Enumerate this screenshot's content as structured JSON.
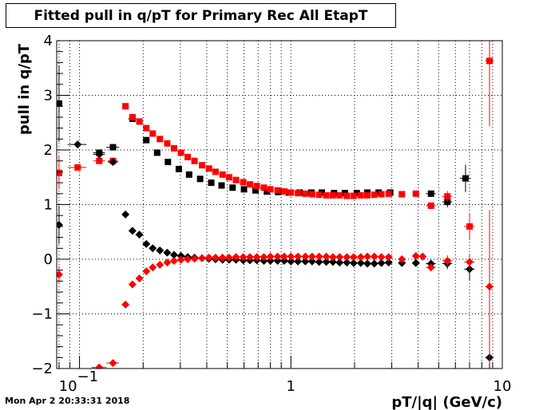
{
  "title": "Fitted pull in q/pT for Primary Rec All EtapT",
  "timestamp": "Mon Apr  2 20:33:31 2018",
  "chart_data": {
    "type": "scatter",
    "xlabel": "pT/|q| (GeV/c)",
    "ylabel": "pull in q/pT",
    "xscale": "log",
    "xlim": [
      0.078,
      10
    ],
    "ylim": [
      -2,
      4
    ],
    "grid": true,
    "x_ticks": [
      {
        "value": 0.1,
        "base": "10",
        "exp": "−1"
      },
      {
        "value": 1,
        "label": "1"
      },
      {
        "value": 10,
        "label": "10"
      }
    ],
    "y_ticks": [
      {
        "value": 4,
        "label": "4"
      },
      {
        "value": 3,
        "label": "3"
      },
      {
        "value": 2,
        "label": "2"
      },
      {
        "value": 1,
        "label": "1"
      },
      {
        "value": 0,
        "label": "0"
      },
      {
        "value": -1,
        "label": "−1"
      },
      {
        "value": -2,
        "label": "−2"
      }
    ],
    "series": [
      {
        "color": "#000000",
        "marker": "square",
        "x": [
          0.08,
          0.124,
          0.144,
          0.178,
          0.207,
          0.233,
          0.262,
          0.295,
          0.33,
          0.372,
          0.42,
          0.47,
          0.53,
          0.6,
          0.68,
          0.77,
          0.87,
          0.98,
          1.1,
          1.25,
          1.4,
          1.6,
          1.8,
          2.05,
          2.3,
          2.6,
          2.95,
          4.6,
          5.5,
          6.7
        ],
        "y": [
          2.85,
          1.95,
          2.05,
          2.57,
          2.18,
          1.95,
          1.78,
          1.65,
          1.55,
          1.47,
          1.4,
          1.35,
          1.31,
          1.28,
          1.26,
          1.24,
          1.23,
          1.22,
          1.22,
          1.22,
          1.22,
          1.21,
          1.21,
          1.21,
          1.22,
          1.22,
          1.22,
          1.2,
          1.05,
          1.48
        ],
        "xerr": [
          0.003,
          0.008,
          0.01,
          0.008,
          0.008,
          0.008,
          0.008,
          0.008,
          0.008,
          0.01,
          0.01,
          0.01,
          0.012,
          0.015,
          0.015,
          0.02,
          0.02,
          0.02,
          0.03,
          0.03,
          0.04,
          0.04,
          0.05,
          0.06,
          0.06,
          0.08,
          0.1,
          0.25,
          0.3,
          0.4
        ],
        "yerr": [
          0.7,
          0.05,
          0.04,
          0.04,
          0.03,
          0.02,
          0.02,
          0.02,
          0.02,
          0.02,
          0.02,
          0.02,
          0.02,
          0.02,
          0.02,
          0.02,
          0.02,
          0.02,
          0.02,
          0.02,
          0.02,
          0.02,
          0.02,
          0.02,
          0.02,
          0.02,
          0.03,
          0.05,
          0.1,
          0.25
        ]
      },
      {
        "color": "#ff0000",
        "marker": "square",
        "x": [
          0.08,
          0.098,
          0.124,
          0.144,
          0.165,
          0.178,
          0.192,
          0.207,
          0.222,
          0.24,
          0.26,
          0.28,
          0.302,
          0.325,
          0.35,
          0.38,
          0.41,
          0.44,
          0.475,
          0.51,
          0.55,
          0.595,
          0.64,
          0.69,
          0.745,
          0.8,
          0.865,
          0.93,
          1.0,
          1.08,
          1.17,
          1.26,
          1.36,
          1.47,
          1.58,
          1.7,
          1.84,
          1.98,
          2.14,
          2.3,
          2.48,
          2.68,
          2.9,
          3.35,
          3.9,
          4.6,
          5.5,
          7.0,
          8.7
        ],
        "y": [
          1.58,
          1.68,
          1.8,
          1.8,
          2.8,
          2.6,
          2.52,
          2.4,
          2.3,
          2.2,
          2.12,
          2.03,
          1.95,
          1.87,
          1.8,
          1.72,
          1.66,
          1.6,
          1.55,
          1.5,
          1.45,
          1.41,
          1.37,
          1.34,
          1.31,
          1.28,
          1.26,
          1.24,
          1.22,
          1.21,
          1.2,
          1.19,
          1.18,
          1.17,
          1.17,
          1.17,
          1.16,
          1.16,
          1.17,
          1.17,
          1.18,
          1.19,
          1.2,
          1.19,
          1.2,
          0.98,
          1.15,
          0.6,
          3.63
        ],
        "xerr": [
          0.003,
          0.01,
          0.008,
          0.008,
          0.003,
          0.003,
          0.003,
          0.003,
          0.003,
          0.003,
          0.003,
          0.003,
          0.003,
          0.003,
          0.003,
          0.004,
          0.004,
          0.004,
          0.004,
          0.004,
          0.005,
          0.005,
          0.005,
          0.005,
          0.006,
          0.006,
          0.007,
          0.008,
          0.01,
          0.01,
          0.01,
          0.01,
          0.012,
          0.012,
          0.013,
          0.014,
          0.015,
          0.016,
          0.018,
          0.02,
          0.02,
          0.025,
          0.03,
          0.1,
          0.15,
          0.25,
          0.3,
          0.4,
          0.4
        ],
        "yerr": [
          0.3,
          0.03,
          0.04,
          0.04,
          0.05,
          0.03,
          0.02,
          0.02,
          0.02,
          0.02,
          0.02,
          0.02,
          0.02,
          0.02,
          0.02,
          0.02,
          0.02,
          0.02,
          0.02,
          0.02,
          0.02,
          0.02,
          0.02,
          0.02,
          0.02,
          0.02,
          0.02,
          0.02,
          0.02,
          0.02,
          0.02,
          0.02,
          0.02,
          0.02,
          0.02,
          0.02,
          0.02,
          0.02,
          0.02,
          0.02,
          0.02,
          0.02,
          0.02,
          0.03,
          0.04,
          0.06,
          0.1,
          0.25,
          1.2
        ]
      },
      {
        "color": "#000000",
        "marker": "diamond",
        "x": [
          0.08,
          0.098,
          0.124,
          0.144,
          0.165,
          0.178,
          0.192,
          0.207,
          0.222,
          0.24,
          0.26,
          0.28,
          0.302,
          0.325,
          0.35,
          0.38,
          0.41,
          0.44,
          0.475,
          0.51,
          0.55,
          0.595,
          0.64,
          0.69,
          0.745,
          0.8,
          0.865,
          0.93,
          1.0,
          1.08,
          1.17,
          1.26,
          1.36,
          1.47,
          1.58,
          1.7,
          1.84,
          1.98,
          2.14,
          2.3,
          2.48,
          2.68,
          2.9,
          3.35,
          3.9,
          4.6,
          5.5,
          7.0,
          8.7
        ],
        "y": [
          0.63,
          2.1,
          1.92,
          1.78,
          0.82,
          0.52,
          0.45,
          0.28,
          0.2,
          0.16,
          0.12,
          0.08,
          0.06,
          0.04,
          0.03,
          0.02,
          0.01,
          0.0,
          -0.01,
          -0.01,
          -0.01,
          -0.02,
          -0.02,
          -0.02,
          -0.03,
          -0.03,
          -0.03,
          -0.03,
          -0.04,
          -0.04,
          -0.04,
          -0.04,
          -0.05,
          -0.05,
          -0.05,
          -0.06,
          -0.06,
          -0.07,
          -0.07,
          -0.08,
          -0.08,
          -0.07,
          -0.06,
          -0.07,
          -0.07,
          -0.08,
          -0.08,
          -0.18,
          -1.8
        ],
        "xerr": [
          0.003,
          0.01,
          0.008,
          0.008,
          0.003,
          0.003,
          0.003,
          0.003,
          0.003,
          0.003,
          0.003,
          0.003,
          0.003,
          0.003,
          0.003,
          0.004,
          0.004,
          0.004,
          0.004,
          0.004,
          0.005,
          0.005,
          0.005,
          0.005,
          0.006,
          0.006,
          0.007,
          0.008,
          0.01,
          0.01,
          0.01,
          0.01,
          0.012,
          0.012,
          0.013,
          0.014,
          0.015,
          0.016,
          0.018,
          0.02,
          0.02,
          0.025,
          0.03,
          0.1,
          0.15,
          0.25,
          0.3,
          0.4,
          0.4
        ],
        "yerr": [
          0.35,
          0.04,
          0.05,
          0.05,
          0.03,
          0.03,
          0.02,
          0.02,
          0.02,
          0.02,
          0.02,
          0.02,
          0.02,
          0.02,
          0.02,
          0.02,
          0.02,
          0.02,
          0.02,
          0.02,
          0.02,
          0.02,
          0.02,
          0.02,
          0.02,
          0.02,
          0.02,
          0.02,
          0.02,
          0.02,
          0.02,
          0.02,
          0.02,
          0.02,
          0.02,
          0.02,
          0.02,
          0.02,
          0.02,
          0.02,
          0.02,
          0.02,
          0.02,
          0.03,
          0.04,
          0.06,
          0.1,
          0.2,
          0.3
        ]
      },
      {
        "color": "#ff0000",
        "marker": "diamond",
        "x": [
          0.08,
          0.124,
          0.144,
          0.165,
          0.178,
          0.192,
          0.207,
          0.222,
          0.24,
          0.26,
          0.28,
          0.302,
          0.325,
          0.35,
          0.38,
          0.41,
          0.44,
          0.475,
          0.51,
          0.55,
          0.595,
          0.64,
          0.69,
          0.745,
          0.8,
          0.865,
          0.93,
          1.0,
          1.08,
          1.17,
          1.26,
          1.36,
          1.47,
          1.58,
          1.7,
          1.84,
          1.98,
          2.14,
          2.3,
          2.48,
          2.68,
          2.9,
          3.35,
          3.9,
          4.2,
          4.6,
          5.5,
          7.0,
          8.7
        ],
        "y": [
          -0.28,
          -1.98,
          -1.9,
          -0.83,
          -0.46,
          -0.35,
          -0.22,
          -0.15,
          -0.1,
          -0.06,
          -0.03,
          -0.01,
          0.0,
          0.01,
          0.02,
          0.03,
          0.03,
          0.03,
          0.03,
          0.04,
          0.04,
          0.04,
          0.04,
          0.04,
          0.05,
          0.05,
          0.05,
          0.05,
          0.05,
          0.05,
          0.05,
          0.05,
          0.05,
          0.04,
          0.04,
          0.04,
          0.04,
          0.04,
          0.05,
          0.05,
          0.04,
          0.04,
          0.0,
          0.06,
          0.05,
          -0.15,
          -0.03,
          -0.05,
          -0.5
        ],
        "xerr": [
          0.003,
          0.01,
          0.01,
          0.003,
          0.003,
          0.003,
          0.003,
          0.003,
          0.003,
          0.003,
          0.003,
          0.003,
          0.003,
          0.003,
          0.004,
          0.004,
          0.004,
          0.004,
          0.004,
          0.005,
          0.005,
          0.005,
          0.005,
          0.006,
          0.006,
          0.007,
          0.008,
          0.01,
          0.01,
          0.01,
          0.01,
          0.012,
          0.012,
          0.013,
          0.014,
          0.015,
          0.016,
          0.018,
          0.02,
          0.02,
          0.025,
          0.03,
          0.05,
          0.1,
          0.1,
          0.25,
          0.3,
          0.4,
          0.4
        ],
        "yerr": [
          0.15,
          0.03,
          0.04,
          0.04,
          0.03,
          0.02,
          0.02,
          0.02,
          0.02,
          0.02,
          0.02,
          0.02,
          0.02,
          0.02,
          0.02,
          0.02,
          0.02,
          0.02,
          0.02,
          0.02,
          0.02,
          0.02,
          0.02,
          0.02,
          0.02,
          0.02,
          0.02,
          0.02,
          0.02,
          0.02,
          0.02,
          0.02,
          0.02,
          0.02,
          0.02,
          0.02,
          0.02,
          0.02,
          0.02,
          0.02,
          0.02,
          0.02,
          0.03,
          0.04,
          0.04,
          0.06,
          0.1,
          0.15,
          1.4
        ]
      }
    ]
  }
}
